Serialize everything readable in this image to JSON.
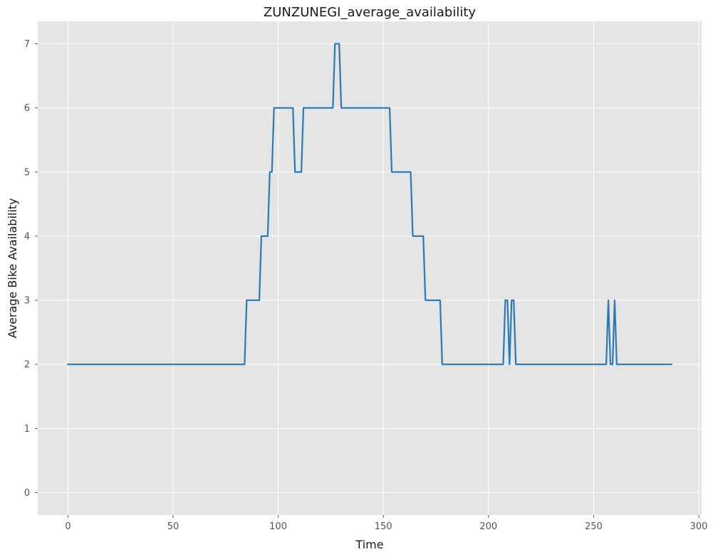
{
  "chart_data": {
    "type": "line",
    "title": "ZUNZUNEGI_average_availability",
    "xlabel": "Time",
    "ylabel": "Average Bike Availability",
    "xlim": [
      -14.35,
      301.35
    ],
    "ylim": [
      -0.35,
      7.35
    ],
    "xticks": [
      0,
      50,
      100,
      150,
      200,
      250,
      300
    ],
    "yticks": [
      0,
      1,
      2,
      3,
      4,
      5,
      6,
      7
    ],
    "grid": true,
    "colors": {
      "background": "#e5e5e5",
      "grid": "#ffffff",
      "line": "#2a7ab8"
    },
    "series": [
      {
        "x": [
          0,
          84,
          85,
          91,
          92,
          95,
          96,
          97,
          98,
          107,
          108,
          111,
          112,
          126,
          127,
          129,
          130,
          153,
          154,
          163,
          164,
          169,
          170,
          177,
          178,
          207,
          208,
          209,
          210,
          211,
          212,
          213,
          256,
          257,
          258,
          259,
          260,
          261,
          287
        ],
        "y": [
          2,
          2,
          3,
          3,
          4,
          4,
          5,
          5,
          6,
          6,
          5,
          5,
          6,
          6,
          7,
          7,
          6,
          6,
          5,
          5,
          4,
          4,
          3,
          3,
          2,
          2,
          3,
          3,
          2,
          3,
          3,
          2,
          2,
          3,
          2,
          2,
          3,
          2,
          2
        ]
      }
    ]
  }
}
